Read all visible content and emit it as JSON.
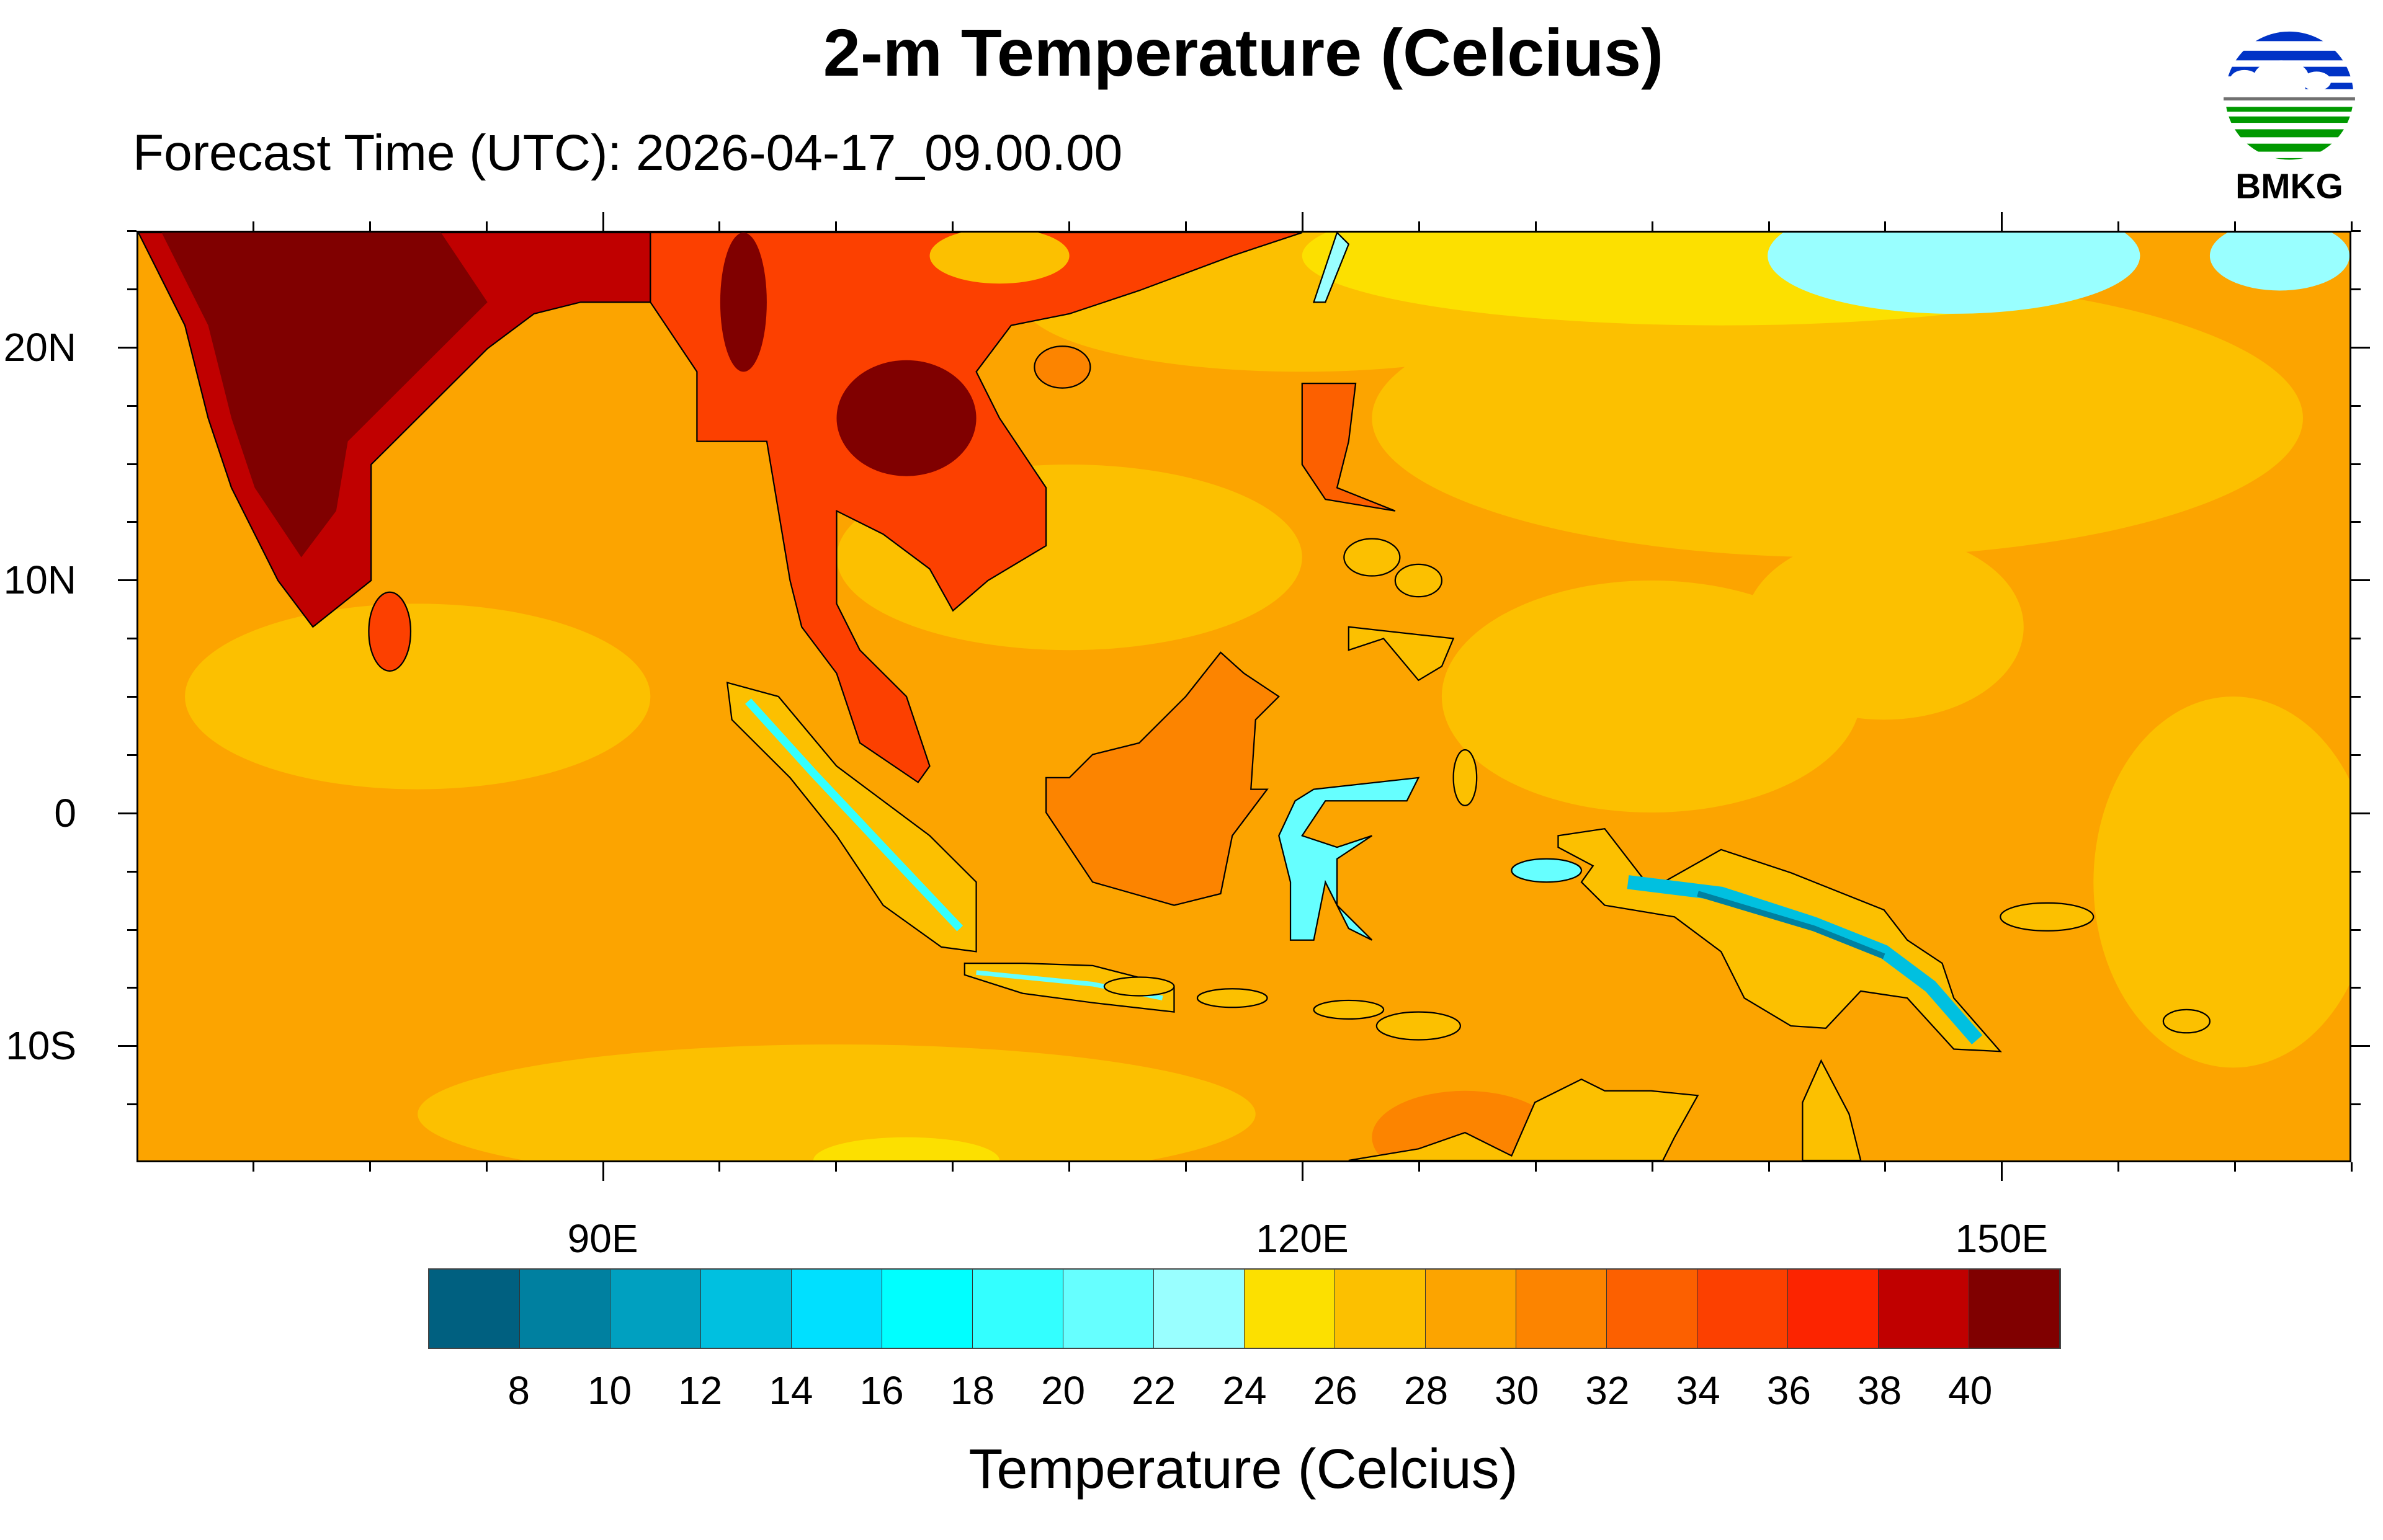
{
  "title": "2-m Temperature (Celcius)",
  "subtitle": "Forecast Time (UTC): 2026-04-17_09.00.00",
  "logo": {
    "text": "BMKG",
    "colors": {
      "blue": "#0033C6",
      "green": "#009900",
      "gray": "#707070"
    }
  },
  "map": {
    "lon_range": [
      70,
      165
    ],
    "lat_range": [
      -15,
      25
    ],
    "lon_labels": [
      {
        "value": 90,
        "label": "90E"
      },
      {
        "value": 120,
        "label": "120E"
      },
      {
        "value": 150,
        "label": "150E"
      }
    ],
    "lat_labels": [
      {
        "value": 20,
        "label": "20N"
      },
      {
        "value": 10,
        "label": "10N"
      },
      {
        "value": 0,
        "label": "0"
      },
      {
        "value": -10,
        "label": "10S"
      }
    ]
  },
  "chart_data": {
    "type": "heatmap",
    "title": "2-m Temperature (Celcius)",
    "subtitle": "Forecast Time (UTC): 2026-04-17_09.00.00",
    "colorbar": {
      "title": "Temperature (Celcius)",
      "labels": [
        "8",
        "10",
        "12",
        "14",
        "16",
        "18",
        "20",
        "22",
        "24",
        "26",
        "28",
        "30",
        "32",
        "34",
        "36",
        "38",
        "40"
      ],
      "colors": [
        "#006080",
        "#0080A0",
        "#00A0C0",
        "#00C0E0",
        "#00E0FF",
        "#00FFFF",
        "#33FFFF",
        "#66FFFF",
        "#99FFFF",
        "#FCE000",
        "#FCC000",
        "#FCA400",
        "#FC8400",
        "#FC6000",
        "#FC4000",
        "#FC2400",
        "#C00000",
        "#800000"
      ]
    }
  }
}
